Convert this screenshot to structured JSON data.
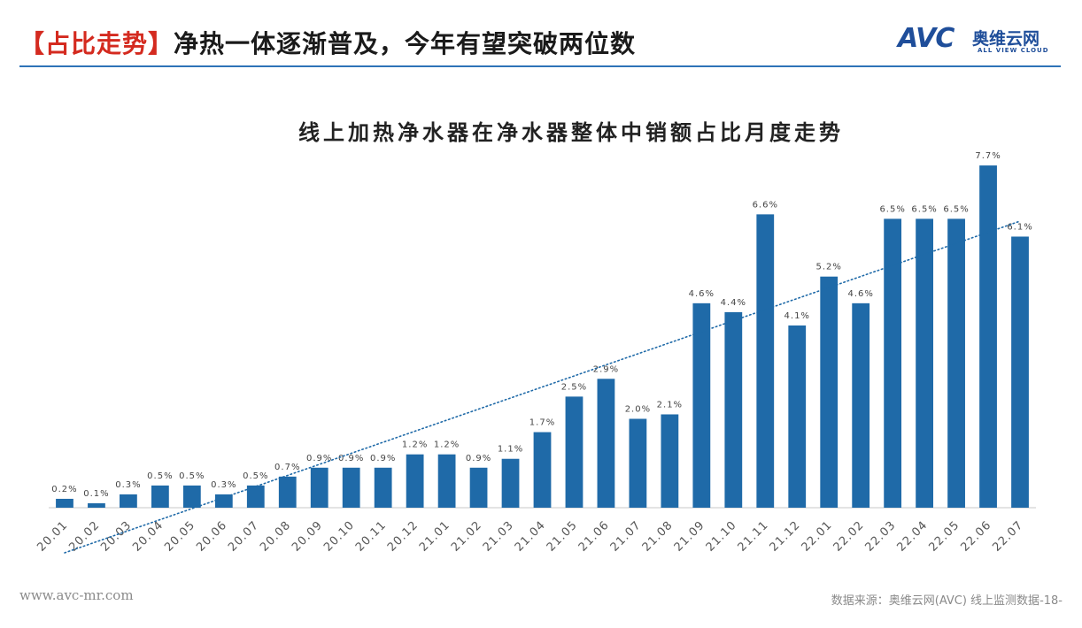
{
  "header": {
    "title_tag": "【占比走势】",
    "title_text": "净热一体逐渐普及，今年有望突破两位数",
    "logo_mark": "AVC",
    "logo_cn": "奥维云网",
    "logo_en": "ALL VIEW CLOUD"
  },
  "footer": {
    "website": "www.avc-mr.com",
    "source": "数据来源：奥维云网(AVC) 线上监测数据",
    "page_number": "-18-"
  },
  "colors": {
    "bar": "#1f6aa8",
    "trendline": "#1f6aa8",
    "accent_red": "#d42a1f",
    "rule_blue": "#2e73b8"
  },
  "chart_data": {
    "type": "bar",
    "title": "线上加热净水器在净水器整体中销额占比月度走势",
    "xlabel": "",
    "ylabel": "",
    "categories": [
      "20.01",
      "20.02",
      "20.03",
      "20.04",
      "20.05",
      "20.06",
      "20.07",
      "20.08",
      "20.09",
      "20.10",
      "20.11",
      "20.12",
      "21.01",
      "21.02",
      "21.03",
      "21.04",
      "21.05",
      "21.06",
      "21.07",
      "21.08",
      "21.09",
      "21.10",
      "21.11",
      "21.12",
      "22.01",
      "22.02",
      "22.03",
      "22.04",
      "22.05",
      "22.06",
      "22.07"
    ],
    "values": [
      0.2,
      0.1,
      0.3,
      0.5,
      0.5,
      0.3,
      0.5,
      0.7,
      0.9,
      0.9,
      0.9,
      1.2,
      1.2,
      0.9,
      1.1,
      1.7,
      2.5,
      2.9,
      2.0,
      2.1,
      4.6,
      4.4,
      6.6,
      4.1,
      5.2,
      4.6,
      6.5,
      6.5,
      6.5,
      7.7,
      6.1
    ],
    "data_labels": [
      "0.2%",
      "0.1%",
      "0.3%",
      "0.5%",
      "0.5%",
      "0.3%",
      "0.5%",
      "0.7%",
      "0.9%",
      "0.9%",
      "0.9%",
      "1.2%",
      "1.2%",
      "0.9%",
      "1.1%",
      "1.7%",
      "2.5%",
      "2.9%",
      "2.0%",
      "2.1%",
      "4.6%",
      "4.4%",
      "6.6%",
      "4.1%",
      "5.2%",
      "4.6%",
      "6.5%",
      "6.5%",
      "6.5%",
      "7.7%",
      "6.1%"
    ],
    "unit": "%",
    "ylim": [
      0,
      8
    ],
    "trendline": "linear, dotted",
    "grid": false,
    "legend": "none"
  }
}
